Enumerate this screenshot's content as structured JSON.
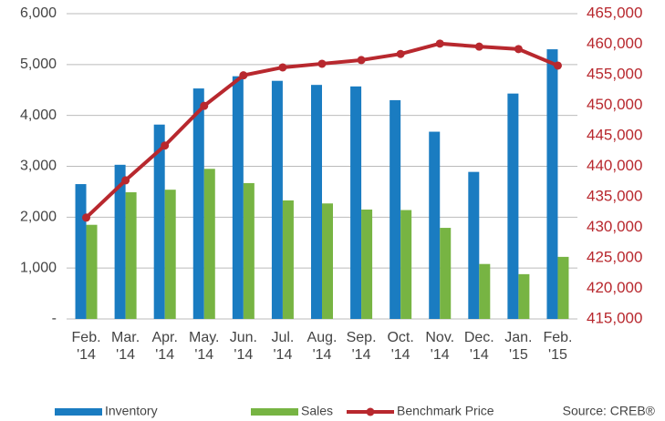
{
  "chart_data": {
    "type": "bar-line",
    "categories": [
      "Feb. '14",
      "Mar. '14",
      "Apr. '14",
      "May. '14",
      "Jun. '14",
      "Jul. '14",
      "Aug. '14",
      "Sep. '14",
      "Oct. '14",
      "Nov. '14",
      "Dec. '14",
      "Jan. '15",
      "Feb. '15"
    ],
    "series": [
      {
        "name": "Inventory",
        "color": "#1a7cc1",
        "type": "bar",
        "values": [
          2650,
          3030,
          3820,
          4530,
          4770,
          4680,
          4600,
          4570,
          4300,
          3680,
          2890,
          4430,
          5300
        ]
      },
      {
        "name": "Sales",
        "color": "#77b443",
        "type": "bar",
        "values": [
          1850,
          2490,
          2540,
          2950,
          2670,
          2330,
          2270,
          2150,
          2140,
          1790,
          1080,
          880,
          1220
        ]
      },
      {
        "name": "Benchmark Price",
        "color": "#b8282e",
        "type": "line",
        "axis": "y2",
        "values": [
          431600,
          437700,
          443400,
          449900,
          454900,
          456200,
          456800,
          457400,
          458400,
          460100,
          459600,
          459200,
          456500
        ]
      }
    ],
    "ylim": [
      0,
      6000
    ],
    "yticks": [
      {
        "value": 0,
        "label": "-"
      },
      {
        "value": 1000,
        "label": "1,000"
      },
      {
        "value": 2000,
        "label": "2,000"
      },
      {
        "value": 3000,
        "label": "3,000"
      },
      {
        "value": 4000,
        "label": "4,000"
      },
      {
        "value": 5000,
        "label": "5,000"
      },
      {
        "value": 6000,
        "label": "6,000"
      }
    ],
    "y2lim": [
      415000,
      465000
    ],
    "y2ticks": [
      {
        "value": 415000,
        "label": "415,000"
      },
      {
        "value": 420000,
        "label": "420,000"
      },
      {
        "value": 425000,
        "label": "425,000"
      },
      {
        "value": 430000,
        "label": "430,000"
      },
      {
        "value": 435000,
        "label": "435,000"
      },
      {
        "value": 440000,
        "label": "440,000"
      },
      {
        "value": 445000,
        "label": "445,000"
      },
      {
        "value": 450000,
        "label": "450,000"
      },
      {
        "value": 455000,
        "label": "455,000"
      },
      {
        "value": 460000,
        "label": "460,000"
      },
      {
        "value": 465000,
        "label": "465,000"
      }
    ],
    "y2color": "#b8282e",
    "grid": true,
    "legend": "bottom",
    "source": "Source: CREB®"
  }
}
